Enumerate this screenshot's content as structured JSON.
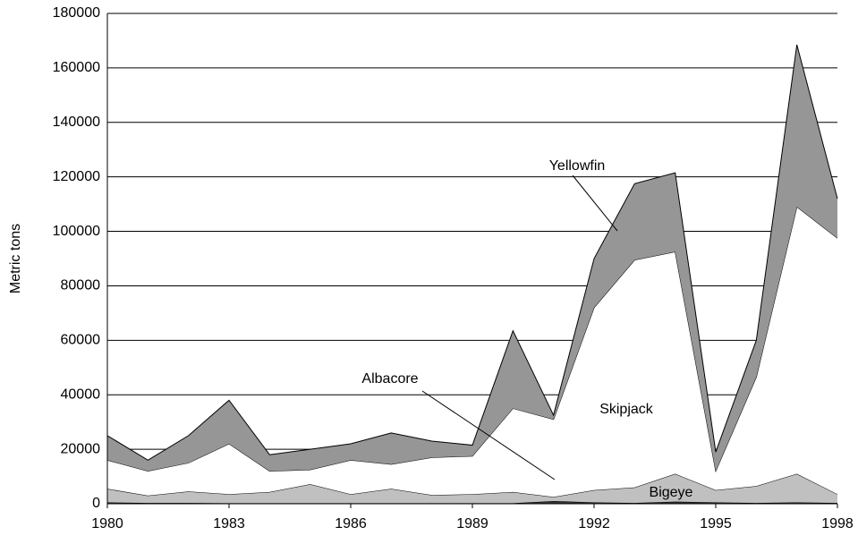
{
  "chart_data": {
    "type": "stacked-area",
    "y_label": "Metric tons",
    "x": [
      1980,
      1981,
      1982,
      1983,
      1984,
      1985,
      1986,
      1987,
      1988,
      1989,
      1990,
      1991,
      1992,
      1993,
      1994,
      1995,
      1996,
      1997,
      1998
    ],
    "series": [
      {
        "name": "Albacore",
        "color": "#333333",
        "values": [
          500,
          300,
          300,
          200,
          200,
          200,
          200,
          200,
          200,
          200,
          200,
          1000,
          500,
          300,
          800,
          500,
          300,
          500,
          300
        ]
      },
      {
        "name": "Bigeye",
        "color": "#c0c0c0",
        "values": [
          5000,
          2700,
          4200,
          3300,
          4100,
          7000,
          3300,
          5300,
          3000,
          3300,
          4100,
          1500,
          4500,
          5700,
          10200,
          4500,
          6200,
          10500,
          3200
        ]
      },
      {
        "name": "Skipjack",
        "color": "#ffffff",
        "values": [
          10500,
          9000,
          10500,
          18500,
          7700,
          5300,
          12500,
          9000,
          13800,
          14000,
          30700,
          28500,
          67000,
          83500,
          81500,
          7000,
          40000,
          98000,
          94000
        ]
      },
      {
        "name": "Yellowfin",
        "color": "#969696",
        "values": [
          9000,
          4000,
          10000,
          16000,
          6000,
          7500,
          6000,
          11500,
          6000,
          4000,
          28500,
          1500,
          18000,
          28000,
          29000,
          7000,
          13500,
          59500,
          14500
        ]
      }
    ],
    "xlim": [
      1980,
      1998
    ],
    "xticks": [
      1980,
      1983,
      1986,
      1989,
      1992,
      1995,
      1998
    ],
    "ylim": [
      0,
      180000
    ],
    "yticks": [
      0,
      20000,
      40000,
      60000,
      80000,
      100000,
      120000,
      140000,
      160000,
      180000
    ],
    "grid": true
  }
}
